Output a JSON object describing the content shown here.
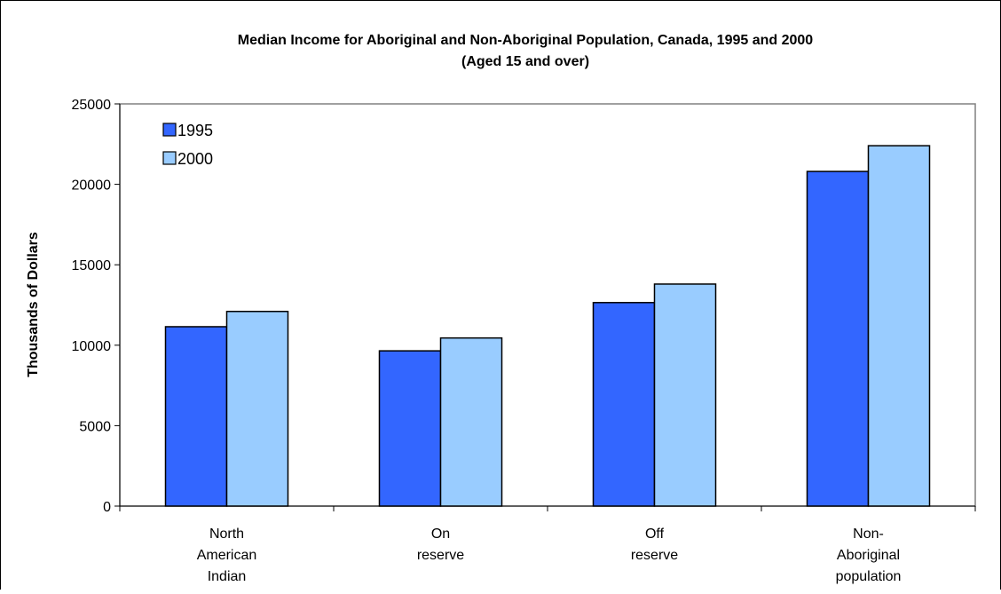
{
  "chart_data": {
    "type": "bar",
    "title": "Median Income for Aboriginal and Non-Aboriginal Population, Canada, 1995 and 2000",
    "subtitle": "(Aged 15 and over)",
    "xlabel": "",
    "ylabel": "Thousands of Dollars",
    "categories": [
      [
        "North",
        "American",
        "Indian"
      ],
      [
        "On",
        "reserve"
      ],
      [
        "Off",
        "reserve"
      ],
      [
        "Non-",
        "Aboriginal",
        "population"
      ]
    ],
    "series": [
      {
        "name": "1995",
        "values": [
          11150,
          9650,
          12650,
          20800
        ],
        "color": "#3366ff"
      },
      {
        "name": "2000",
        "values": [
          12100,
          10450,
          13800,
          22400
        ],
        "color": "#99ccff"
      }
    ],
    "ylim": [
      0,
      25000
    ],
    "yticks": [
      0,
      5000,
      10000,
      15000,
      20000,
      25000
    ],
    "grid": false,
    "legend_position": "top-left"
  }
}
